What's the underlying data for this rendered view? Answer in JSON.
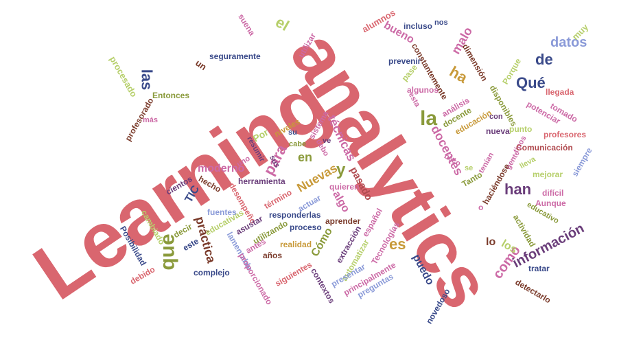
{
  "colors": {
    "crimson": "#b04a4f",
    "rose": "#d9666f",
    "olive": "#8a9a3b",
    "plum": "#6a3d7a",
    "navy": "#3a4a8a",
    "gold": "#c89a3a",
    "pink": "#cc6aa6",
    "brown": "#7a3a2a",
    "lightblue": "#8a9ad8",
    "lime": "#b6cf6a"
  },
  "words": [
    {
      "text": "Learning",
      "color": "rose"
    },
    {
      "text": "analytics",
      "color": "rose"
    },
    {
      "text": "la",
      "color": "olive"
    },
    {
      "text": "que",
      "color": "olive"
    },
    {
      "text": "el",
      "color": "lime"
    },
    {
      "text": "las",
      "color": "navy"
    },
    {
      "text": "de",
      "color": "navy"
    },
    {
      "text": "datos",
      "color": "lightblue"
    },
    {
      "text": "Qué",
      "color": "navy"
    },
    {
      "text": "han",
      "color": "plum"
    },
    {
      "text": "información",
      "color": "plum"
    },
    {
      "text": "Nuevas",
      "color": "gold"
    },
    {
      "text": "y",
      "color": "olive"
    },
    {
      "text": "ha",
      "color": "gold"
    },
    {
      "text": "en",
      "color": "olive"
    },
    {
      "text": "para",
      "color": "pink"
    },
    {
      "text": "docentes",
      "color": "pink"
    },
    {
      "text": "técnicas",
      "color": "pink"
    },
    {
      "text": "moderno",
      "color": "pink"
    },
    {
      "text": "práctica",
      "color": "brown"
    },
    {
      "text": "como",
      "color": "pink"
    },
    {
      "text": "es",
      "color": "gold"
    },
    {
      "text": "los",
      "color": "lime"
    },
    {
      "text": "lo",
      "color": "brown"
    },
    {
      "text": "malo",
      "color": "pink"
    },
    {
      "text": "bueno",
      "color": "pink"
    },
    {
      "text": "Cómo",
      "color": "olive"
    },
    {
      "text": "algo",
      "color": "pink"
    },
    {
      "text": "pasado",
      "color": "crimson"
    },
    {
      "text": "puedo",
      "color": "navy"
    },
    {
      "text": "muy",
      "color": "lime"
    },
    {
      "text": "suena",
      "color": "pink"
    },
    {
      "text": "alumnos",
      "color": "rose"
    },
    {
      "text": "incluso",
      "color": "navy"
    },
    {
      "text": "nos",
      "color": "navy"
    },
    {
      "text": "utilizar",
      "color": "pink"
    },
    {
      "text": "seguramente",
      "color": "navy"
    },
    {
      "text": "un",
      "color": "brown"
    },
    {
      "text": "procesado",
      "color": "lime"
    },
    {
      "text": "Entonces",
      "color": "olive"
    },
    {
      "text": "constantemente",
      "color": "brown"
    },
    {
      "text": "prevenir",
      "color": "navy"
    },
    {
      "text": "dimensión",
      "color": "brown"
    },
    {
      "text": "Porque",
      "color": "lime"
    },
    {
      "text": "pase",
      "color": "lime"
    },
    {
      "text": "algunos",
      "color": "pink"
    },
    {
      "text": "llegada",
      "color": "rose"
    },
    {
      "text": "tomado",
      "color": "pink"
    },
    {
      "text": "potenciar",
      "color": "pink"
    },
    {
      "text": "profesorado",
      "color": "brown"
    },
    {
      "text": "más",
      "color": "pink"
    },
    {
      "text": "esta",
      "color": "pink"
    },
    {
      "text": "análisis",
      "color": "pink"
    },
    {
      "text": "docente",
      "color": "olive"
    },
    {
      "text": "educación",
      "color": "gold"
    },
    {
      "text": "con",
      "color": "plum"
    },
    {
      "text": "disponibles",
      "color": "olive"
    },
    {
      "text": "niveles",
      "color": "gold"
    },
    {
      "text": "su",
      "color": "navy"
    },
    {
      "text": "sistema",
      "color": "pink"
    },
    {
      "text": "punto",
      "color": "lime"
    },
    {
      "text": "nueva",
      "color": "plum"
    },
    {
      "text": "profesores",
      "color": "rose"
    },
    {
      "text": "Por",
      "color": "lime"
    },
    {
      "text": "resumir",
      "color": "plum"
    },
    {
      "text": "cabe",
      "color": "olive"
    },
    {
      "text": "debo",
      "color": "pink"
    },
    {
      "text": "ve",
      "color": "plum"
    },
    {
      "text": "tipos",
      "color": "pink"
    },
    {
      "text": "Comunicación",
      "color": "crimson"
    },
    {
      "text": "uno",
      "color": "pink"
    },
    {
      "text": "sus",
      "color": "plum"
    },
    {
      "text": "lleva",
      "color": "lime"
    },
    {
      "text": "gente",
      "color": "pink"
    },
    {
      "text": "siempre",
      "color": "lightblue"
    },
    {
      "text": "hecho",
      "color": "brown"
    },
    {
      "text": "herramienta",
      "color": "plum"
    },
    {
      "text": "cientos",
      "color": "plum"
    },
    {
      "text": "TIC",
      "color": "navy"
    },
    {
      "text": "quieren",
      "color": "pink"
    },
    {
      "text": "término",
      "color": "rose"
    },
    {
      "text": "actuar",
      "color": "lightblue"
    },
    {
      "text": "beco",
      "color": "pink"
    },
    {
      "text": "se",
      "color": "lime"
    },
    {
      "text": "Tanto",
      "color": "olive"
    },
    {
      "text": "tenían",
      "color": "pink"
    },
    {
      "text": "haciéndose",
      "color": "brown"
    },
    {
      "text": "mejorar",
      "color": "lime"
    },
    {
      "text": "difícil",
      "color": "pink"
    },
    {
      "text": "Aunque",
      "color": "pink"
    },
    {
      "text": "educativo",
      "color": "olive"
    },
    {
      "text": "fuentes",
      "color": "lightblue"
    },
    {
      "text": "responderlas",
      "color": "navy"
    },
    {
      "text": "aprender",
      "color": "brown"
    },
    {
      "text": "español",
      "color": "pink"
    },
    {
      "text": "cambiado",
      "color": "lime"
    },
    {
      "text": "decir",
      "color": "olive"
    },
    {
      "text": "educativas",
      "color": "lime"
    },
    {
      "text": "desempeño",
      "color": "rose"
    },
    {
      "text": "asustar",
      "color": "plum"
    },
    {
      "text": "utilizando",
      "color": "olive"
    },
    {
      "text": "proceso",
      "color": "navy"
    },
    {
      "text": "extracción",
      "color": "plum"
    },
    {
      "text": "Tecnologías",
      "color": "pink"
    },
    {
      "text": "actividad",
      "color": "olive"
    },
    {
      "text": "Posibilidad",
      "color": "navy"
    },
    {
      "text": "este",
      "color": "navy"
    },
    {
      "text": "lamentable",
      "color": "lightblue"
    },
    {
      "text": "antes",
      "color": "pink"
    },
    {
      "text": "realidad",
      "color": "gold"
    },
    {
      "text": "automatizar",
      "color": "lime"
    },
    {
      "text": "años",
      "color": "brown"
    },
    {
      "text": "proporcionado",
      "color": "pink"
    },
    {
      "text": "siguientes",
      "color": "rose"
    },
    {
      "text": "presentar",
      "color": "lightblue"
    },
    {
      "text": "contextos",
      "color": "plum"
    },
    {
      "text": "principalmente",
      "color": "pink"
    },
    {
      "text": "preguntas",
      "color": "lightblue"
    },
    {
      "text": "tratar",
      "color": "navy"
    },
    {
      "text": "detectarlo",
      "color": "brown"
    },
    {
      "text": "novedoso",
      "color": "navy"
    },
    {
      "text": "debido",
      "color": "rose"
    },
    {
      "text": "complejo",
      "color": "navy"
    },
    {
      "text": "o",
      "color": "pink"
    }
  ]
}
